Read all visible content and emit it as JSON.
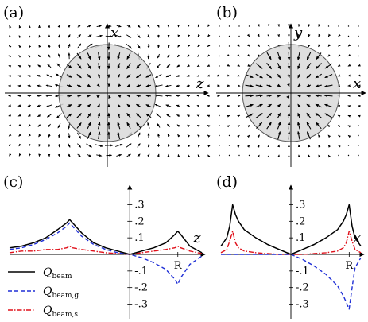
{
  "panels": {
    "a": {
      "label": "(a)",
      "vertical_axis": "x",
      "horizontal_axis": "z",
      "field": "dipolar-quadrupolar flow around sphere"
    },
    "b": {
      "label": "(b)",
      "vertical_axis": "y",
      "horizontal_axis": "x",
      "field": "radial inward vectors inside sphere"
    },
    "c": {
      "label": "(c)",
      "horizontal_axis": "z"
    },
    "d": {
      "label": "(d)",
      "horizontal_axis": "x"
    }
  },
  "colors": {
    "total": "#000000",
    "g": "#1f2fd6",
    "s": "#e0101a",
    "sphere_fill": "#d9d9d9",
    "sphere_edge": "#555555"
  },
  "chart_data": [
    {
      "type": "line",
      "panel": "c",
      "xlabel": "z",
      "marker_label": "R",
      "ytick_labels": [
        ".3",
        ".2",
        ".1",
        "-.1",
        "-.2",
        "-.3"
      ],
      "yticks": [
        0.3,
        0.2,
        0.1,
        -0.1,
        -0.2,
        -0.3
      ],
      "xlim": [
        -2.0,
        1.2
      ],
      "ylim": [
        -0.36,
        0.36
      ],
      "x": [
        -2.0,
        -1.8,
        -1.6,
        -1.4,
        -1.2,
        -1.05,
        -1.0,
        -0.95,
        -0.8,
        -0.6,
        -0.4,
        -0.2,
        0.0,
        0.2,
        0.4,
        0.6,
        0.75,
        0.8,
        0.85,
        1.0,
        1.2
      ],
      "series": [
        {
          "name": "Q_beam",
          "values": [
            0.04,
            0.05,
            0.07,
            0.1,
            0.15,
            0.19,
            0.21,
            0.19,
            0.13,
            0.07,
            0.04,
            0.02,
            0.0,
            0.02,
            0.04,
            0.07,
            0.12,
            0.14,
            0.12,
            0.05,
            0.01
          ]
        },
        {
          "name": "Q_beam,g",
          "values": [
            0.03,
            0.04,
            0.06,
            0.09,
            0.13,
            0.17,
            0.19,
            0.17,
            0.11,
            0.06,
            0.03,
            0.01,
            0.0,
            -0.02,
            -0.05,
            -0.09,
            -0.15,
            -0.18,
            -0.14,
            -0.06,
            -0.01
          ]
        },
        {
          "name": "Q_beam,s",
          "values": [
            0.01,
            0.02,
            0.02,
            0.03,
            0.03,
            0.04,
            0.05,
            0.04,
            0.03,
            0.02,
            0.01,
            0.005,
            0.0,
            0.01,
            0.02,
            0.03,
            0.04,
            0.05,
            0.04,
            0.02,
            0.005
          ]
        }
      ]
    },
    {
      "type": "line",
      "panel": "d",
      "xlabel": "x",
      "marker_label": "R",
      "ytick_labels": [
        ".3",
        ".2",
        ".1",
        "-.1",
        "-.2",
        "-.3"
      ],
      "yticks": [
        0.3,
        0.2,
        0.1,
        -0.1,
        -0.2,
        -0.3
      ],
      "xlim": [
        -1.2,
        1.2
      ],
      "ylim": [
        -0.36,
        0.36
      ],
      "x": [
        -1.2,
        -1.1,
        -1.05,
        -1.0,
        -0.95,
        -0.9,
        -0.8,
        -0.6,
        -0.4,
        -0.2,
        0.0,
        0.2,
        0.4,
        0.6,
        0.8,
        0.9,
        0.95,
        1.0,
        1.05,
        1.1,
        1.2
      ],
      "series": [
        {
          "name": "Q_beam",
          "values": [
            0.05,
            0.1,
            0.17,
            0.3,
            0.24,
            0.2,
            0.15,
            0.1,
            0.06,
            0.03,
            0.0,
            0.03,
            0.06,
            0.1,
            0.15,
            0.2,
            0.24,
            0.3,
            0.17,
            0.1,
            0.05
          ]
        },
        {
          "name": "Q_beam,g",
          "values": [
            0.0,
            0.0,
            0.0,
            0.0,
            0.0,
            0.0,
            0.0,
            0.0,
            0.0,
            0.0,
            0.0,
            -0.03,
            -0.07,
            -0.12,
            -0.19,
            -0.25,
            -0.29,
            -0.33,
            -0.2,
            -0.08,
            -0.02
          ]
        },
        {
          "name": "Q_beam,s",
          "values": [
            0.01,
            0.03,
            0.08,
            0.14,
            0.07,
            0.04,
            0.02,
            0.01,
            0.005,
            0.0,
            0.0,
            0.0,
            0.005,
            0.01,
            0.02,
            0.04,
            0.07,
            0.14,
            0.08,
            0.03,
            0.01
          ]
        }
      ]
    }
  ],
  "legend": [
    {
      "main": "Q",
      "sub": "beam",
      "color_key": "total",
      "dash": ""
    },
    {
      "main": "Q",
      "sub": "beam,g",
      "color_key": "g",
      "dash": "5,3"
    },
    {
      "main": "Q",
      "sub": "beam,s",
      "color_key": "s",
      "dash": "6,2,1.5,2"
    }
  ]
}
